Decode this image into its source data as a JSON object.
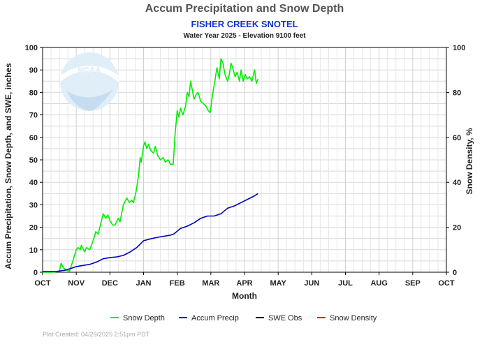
{
  "title": "Accum Precipitation and Snow Depth",
  "subtitle": "FISHER CREEK SNOTEL",
  "subtitle2": "Water Year 2025 -  Elevation 9100 feet",
  "footer": "Plot Created: 04/29/2025 2:51pm PDT",
  "logo_text": "NOAA",
  "chart_data": {
    "type": "line",
    "xlabel": "Month",
    "ylabel": "Accum Precipitation, Snow Depth, and SWE, inches",
    "y2label": "Snow Density, %",
    "categories": [
      "OCT",
      "NOV",
      "DEC",
      "JAN",
      "FEB",
      "MAR",
      "APR",
      "MAY",
      "JUN",
      "JUL",
      "AUG",
      "SEP",
      "OCT"
    ],
    "ylim": [
      0,
      100
    ],
    "y2lim": [
      0,
      100
    ],
    "yticks": [
      0,
      10,
      20,
      30,
      40,
      50,
      60,
      70,
      80,
      90,
      100
    ],
    "y2ticks": [
      0,
      20,
      40,
      60,
      80,
      100
    ],
    "grid": true,
    "legend_position": "bottom",
    "series": [
      {
        "name": "Snow Depth",
        "color": "#00ee00",
        "points": [
          [
            0,
            0
          ],
          [
            0.3,
            0
          ],
          [
            0.5,
            0.5
          ],
          [
            0.55,
            4
          ],
          [
            0.62,
            2
          ],
          [
            0.7,
            1
          ],
          [
            0.8,
            0.5
          ],
          [
            0.9,
            5
          ],
          [
            1.0,
            10
          ],
          [
            1.05,
            11
          ],
          [
            1.12,
            10
          ],
          [
            1.15,
            12
          ],
          [
            1.25,
            9
          ],
          [
            1.3,
            11
          ],
          [
            1.4,
            10
          ],
          [
            1.5,
            14
          ],
          [
            1.58,
            18
          ],
          [
            1.65,
            17
          ],
          [
            1.72,
            21
          ],
          [
            1.8,
            26
          ],
          [
            1.88,
            24
          ],
          [
            1.94,
            25.5
          ],
          [
            2.0,
            23
          ],
          [
            2.08,
            21
          ],
          [
            2.15,
            21
          ],
          [
            2.25,
            24
          ],
          [
            2.3,
            22.5
          ],
          [
            2.4,
            30
          ],
          [
            2.5,
            33
          ],
          [
            2.58,
            31
          ],
          [
            2.65,
            32
          ],
          [
            2.7,
            31
          ],
          [
            2.78,
            36
          ],
          [
            2.85,
            43
          ],
          [
            2.9,
            51
          ],
          [
            2.93,
            49
          ],
          [
            3.0,
            56
          ],
          [
            3.04,
            58
          ],
          [
            3.1,
            55
          ],
          [
            3.15,
            57
          ],
          [
            3.22,
            54
          ],
          [
            3.3,
            53
          ],
          [
            3.35,
            56
          ],
          [
            3.42,
            52
          ],
          [
            3.5,
            50
          ],
          [
            3.58,
            51
          ],
          [
            3.65,
            49
          ],
          [
            3.73,
            50
          ],
          [
            3.8,
            48
          ],
          [
            3.88,
            48
          ],
          [
            3.94,
            62
          ],
          [
            4.0,
            72
          ],
          [
            4.05,
            69
          ],
          [
            4.1,
            73
          ],
          [
            4.17,
            70
          ],
          [
            4.25,
            74
          ],
          [
            4.3,
            80
          ],
          [
            4.35,
            78
          ],
          [
            4.4,
            85
          ],
          [
            4.45,
            81
          ],
          [
            4.5,
            77
          ],
          [
            4.56,
            79
          ],
          [
            4.62,
            80
          ],
          [
            4.7,
            76
          ],
          [
            4.78,
            75
          ],
          [
            4.85,
            74
          ],
          [
            4.92,
            72
          ],
          [
            4.98,
            71
          ],
          [
            5.05,
            79
          ],
          [
            5.12,
            85
          ],
          [
            5.18,
            91
          ],
          [
            5.25,
            86
          ],
          [
            5.3,
            95
          ],
          [
            5.36,
            93
          ],
          [
            5.42,
            88
          ],
          [
            5.5,
            85
          ],
          [
            5.55,
            88
          ],
          [
            5.6,
            93
          ],
          [
            5.65,
            91
          ],
          [
            5.72,
            87
          ],
          [
            5.78,
            89
          ],
          [
            5.85,
            85
          ],
          [
            5.9,
            90
          ],
          [
            5.96,
            85
          ],
          [
            6.02,
            88
          ],
          [
            6.08,
            86
          ],
          [
            6.15,
            87
          ],
          [
            6.22,
            85
          ],
          [
            6.3,
            90
          ],
          [
            6.35,
            84
          ],
          [
            6.4,
            86
          ]
        ]
      },
      {
        "name": "Accum Precip",
        "color": "#0000bb",
        "points": [
          [
            0,
            0.3
          ],
          [
            0.4,
            0.3
          ],
          [
            0.7,
            1
          ],
          [
            0.9,
            2
          ],
          [
            1.0,
            2.5
          ],
          [
            1.2,
            3
          ],
          [
            1.4,
            3.5
          ],
          [
            1.6,
            4.5
          ],
          [
            1.8,
            6
          ],
          [
            2.0,
            6.5
          ],
          [
            2.2,
            6.8
          ],
          [
            2.4,
            7.5
          ],
          [
            2.6,
            9
          ],
          [
            2.8,
            11
          ],
          [
            3.0,
            14
          ],
          [
            3.2,
            14.8
          ],
          [
            3.4,
            15.5
          ],
          [
            3.6,
            16
          ],
          [
            3.8,
            16.5
          ],
          [
            3.9,
            17
          ],
          [
            4.1,
            19.5
          ],
          [
            4.3,
            20.5
          ],
          [
            4.5,
            22
          ],
          [
            4.7,
            24
          ],
          [
            4.9,
            25
          ],
          [
            5.1,
            25
          ],
          [
            5.3,
            26
          ],
          [
            5.5,
            28.5
          ],
          [
            5.7,
            29.5
          ],
          [
            5.9,
            31
          ],
          [
            6.1,
            32.5
          ],
          [
            6.3,
            34
          ],
          [
            6.4,
            35
          ]
        ]
      },
      {
        "name": "SWE Obs",
        "color": "#000000",
        "points": []
      },
      {
        "name": "Snow Density",
        "color": "#ee0000",
        "points": []
      }
    ]
  }
}
